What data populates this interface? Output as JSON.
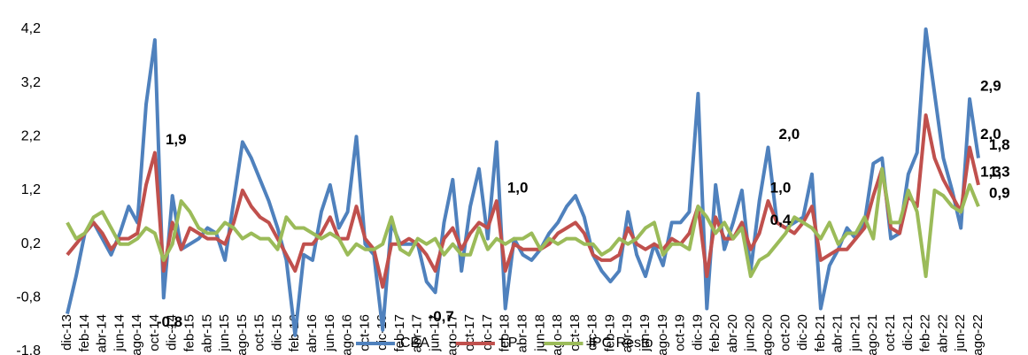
{
  "chart_data": {
    "type": "line",
    "categories": [
      "dic-13",
      null,
      "feb-14",
      null,
      "abr-14",
      null,
      "jun-14",
      null,
      "ago-14",
      null,
      "oct-14",
      null,
      "dic-14",
      null,
      "feb-15",
      null,
      "abr-15",
      null,
      "jun-15",
      null,
      "ago-15",
      null,
      "oct-15",
      null,
      "dic-15",
      null,
      "feb-16",
      null,
      "abr-16",
      null,
      "jun-16",
      null,
      "ago-16",
      null,
      "oct-16",
      null,
      "dic-16",
      null,
      "feb-17",
      null,
      "abr-17",
      null,
      "jun-17",
      null,
      "ago-17",
      null,
      "oct-17",
      null,
      "dic-17",
      null,
      "feb-18",
      null,
      "abr-18",
      null,
      "jun-18",
      null,
      "ago-18",
      null,
      "oct-18",
      null,
      "dic-18",
      null,
      "feb-19",
      null,
      "abr-19",
      null,
      "jun-19",
      null,
      "ago-19",
      null,
      "oct-19",
      null,
      "dic-19",
      null,
      "feb-20",
      null,
      "abr-20",
      null,
      "jun-20",
      null,
      "ago-20",
      null,
      "oct-20",
      null,
      "dic-20",
      null,
      "feb-21",
      null,
      "abr-21",
      null,
      "jun-21",
      null,
      "ago-21",
      null,
      "oct-21",
      null,
      "dic-21",
      null,
      "feb-22",
      null,
      "abr-22",
      null,
      "jun-22",
      null,
      "ago-22"
    ],
    "series": [
      {
        "name": "CBA",
        "color": "#4f81bd",
        "values": [
          -1.1,
          -0.4,
          0.4,
          0.6,
          0.3,
          0.0,
          0.4,
          0.9,
          0.6,
          2.8,
          4.0,
          -0.8,
          1.1,
          0.1,
          0.2,
          0.3,
          0.5,
          0.4,
          -0.1,
          1.0,
          2.1,
          1.8,
          1.4,
          1.0,
          0.5,
          -0.1,
          -1.5,
          0.0,
          -0.1,
          0.8,
          1.3,
          0.5,
          0.8,
          2.2,
          0.2,
          0.0,
          -1.4,
          0.6,
          0.2,
          0.2,
          0.2,
          -0.5,
          -0.7,
          0.6,
          1.4,
          -0.3,
          0.9,
          1.6,
          0.3,
          2.1,
          -1.0,
          0.3,
          0.0,
          -0.1,
          0.1,
          0.4,
          0.6,
          0.9,
          1.1,
          0.7,
          0.0,
          -0.3,
          -0.5,
          -0.3,
          0.8,
          0.0,
          -0.4,
          0.2,
          -0.2,
          0.6,
          0.6,
          0.8,
          3.0,
          -1.0,
          1.3,
          0.1,
          0.6,
          1.2,
          -0.3,
          1.0,
          2.0,
          0.6,
          0.5,
          0.6,
          0.7,
          1.5,
          -1.0,
          -0.2,
          0.1,
          0.5,
          0.3,
          0.6,
          1.7,
          1.8,
          0.3,
          0.4,
          1.5,
          1.9,
          4.2,
          3.0,
          1.8,
          1.2,
          0.5,
          2.9,
          1.8
        ],
        "value_labels": [
          null,
          null,
          null,
          null,
          null,
          null,
          null,
          null,
          null,
          null,
          null,
          "-0,8",
          null,
          null,
          null,
          null,
          null,
          null,
          null,
          null,
          null,
          null,
          null,
          null,
          null,
          null,
          null,
          null,
          null,
          null,
          null,
          null,
          null,
          null,
          null,
          null,
          null,
          null,
          null,
          null,
          null,
          null,
          "-0,7",
          null,
          null,
          null,
          null,
          null,
          null,
          null,
          null,
          null,
          null,
          null,
          null,
          null,
          null,
          null,
          null,
          null,
          null,
          null,
          null,
          null,
          null,
          null,
          null,
          null,
          null,
          null,
          null,
          null,
          null,
          null,
          null,
          null,
          null,
          null,
          null,
          "1,0",
          "2,0",
          null,
          null,
          null,
          null,
          null,
          null,
          null,
          null,
          null,
          null,
          null,
          null,
          null,
          null,
          null,
          null,
          null,
          null,
          null,
          null,
          null,
          null,
          "2,9",
          "1,8"
        ]
      },
      {
        "name": "LP",
        "color": "#c0504d",
        "values": [
          0.0,
          0.2,
          0.4,
          0.6,
          0.4,
          0.1,
          0.3,
          0.3,
          0.4,
          1.3,
          1.9,
          -0.3,
          0.6,
          0.1,
          0.5,
          0.4,
          0.3,
          0.3,
          0.2,
          0.6,
          1.2,
          0.9,
          0.7,
          0.6,
          0.3,
          0.0,
          -0.3,
          0.2,
          0.2,
          0.4,
          0.7,
          0.3,
          0.3,
          0.9,
          0.3,
          0.1,
          -0.6,
          0.2,
          0.2,
          0.3,
          0.2,
          0.0,
          -0.3,
          0.3,
          0.5,
          0.1,
          0.4,
          0.6,
          0.5,
          1.0,
          -0.3,
          0.2,
          0.1,
          0.1,
          0.1,
          0.2,
          0.4,
          0.5,
          0.6,
          0.4,
          0.0,
          -0.1,
          -0.1,
          0.0,
          0.5,
          0.2,
          0.1,
          0.2,
          0.1,
          0.3,
          0.2,
          0.4,
          0.9,
          -0.4,
          0.7,
          0.3,
          0.3,
          0.6,
          0.1,
          0.4,
          1.0,
          0.6,
          0.5,
          0.4,
          0.6,
          0.9,
          -0.1,
          0.0,
          0.1,
          0.1,
          0.3,
          0.5,
          1.1,
          1.6,
          0.5,
          0.4,
          1.1,
          0.9,
          2.6,
          1.8,
          1.4,
          1.1,
          0.8,
          2.0,
          1.3
        ],
        "value_labels": [
          null,
          null,
          null,
          null,
          null,
          null,
          null,
          null,
          null,
          null,
          "1,9",
          null,
          null,
          null,
          null,
          null,
          null,
          null,
          null,
          null,
          null,
          null,
          null,
          null,
          null,
          null,
          null,
          null,
          null,
          null,
          null,
          null,
          null,
          null,
          null,
          null,
          null,
          null,
          null,
          null,
          null,
          null,
          null,
          null,
          null,
          null,
          null,
          null,
          null,
          "1,0",
          null,
          null,
          null,
          null,
          null,
          null,
          null,
          null,
          null,
          null,
          null,
          null,
          null,
          null,
          null,
          null,
          null,
          null,
          null,
          null,
          null,
          null,
          null,
          null,
          null,
          null,
          null,
          null,
          null,
          "0,4",
          null,
          null,
          null,
          null,
          null,
          null,
          null,
          null,
          null,
          null,
          null,
          null,
          null,
          null,
          null,
          null,
          null,
          null,
          null,
          null,
          null,
          null,
          null,
          "2,0",
          "1,3"
        ]
      },
      {
        "name": "IPC Resto",
        "color": "#9bbb59",
        "values": [
          0.6,
          0.3,
          0.4,
          0.7,
          0.8,
          0.5,
          0.2,
          0.2,
          0.3,
          0.5,
          0.4,
          -0.1,
          0.2,
          1.0,
          0.8,
          0.5,
          0.4,
          0.4,
          0.6,
          0.5,
          0.3,
          0.4,
          0.3,
          0.3,
          0.1,
          0.7,
          0.5,
          0.5,
          0.4,
          0.3,
          0.4,
          0.3,
          0.0,
          0.2,
          0.1,
          0.1,
          0.2,
          0.7,
          0.1,
          0.0,
          0.3,
          0.2,
          0.3,
          0.0,
          0.2,
          0.0,
          0.0,
          0.5,
          0.1,
          0.3,
          0.2,
          0.3,
          0.3,
          0.4,
          0.1,
          0.3,
          0.2,
          0.3,
          0.3,
          0.2,
          0.2,
          0.0,
          0.1,
          0.3,
          0.2,
          0.3,
          0.5,
          0.6,
          0.0,
          0.2,
          0.2,
          0.1,
          0.9,
          0.7,
          0.4,
          0.6,
          0.3,
          0.5,
          -0.4,
          -0.1,
          0.0,
          0.2,
          0.4,
          0.7,
          0.6,
          0.5,
          0.3,
          0.6,
          0.2,
          0.4,
          0.4,
          0.7,
          0.3,
          1.6,
          0.6,
          0.6,
          1.2,
          0.8,
          -0.4,
          1.2,
          1.1,
          0.9,
          0.8,
          1.3,
          0.9
        ],
        "value_labels": [
          null,
          null,
          null,
          null,
          null,
          null,
          null,
          null,
          null,
          null,
          null,
          null,
          null,
          null,
          null,
          null,
          null,
          null,
          null,
          null,
          null,
          null,
          null,
          null,
          null,
          null,
          null,
          null,
          null,
          null,
          null,
          null,
          null,
          null,
          null,
          null,
          null,
          null,
          null,
          null,
          null,
          null,
          null,
          null,
          null,
          null,
          null,
          null,
          null,
          null,
          null,
          null,
          null,
          null,
          null,
          null,
          null,
          null,
          null,
          null,
          null,
          null,
          null,
          null,
          null,
          null,
          null,
          null,
          null,
          null,
          null,
          null,
          null,
          null,
          null,
          null,
          null,
          null,
          null,
          null,
          null,
          null,
          null,
          null,
          null,
          null,
          null,
          null,
          null,
          null,
          null,
          null,
          null,
          null,
          null,
          null,
          null,
          null,
          null,
          null,
          null,
          null,
          null,
          "1,3",
          "0,9"
        ]
      }
    ],
    "ylim": [
      -1.8,
      4.2
    ],
    "yticks": [
      {
        "value": -1.8,
        "label": "-1,8"
      },
      {
        "value": -0.8,
        "label": "-0,8"
      },
      {
        "value": 0.2,
        "label": "0,2"
      },
      {
        "value": 1.2,
        "label": "1,2"
      },
      {
        "value": 2.2,
        "label": "2,2"
      },
      {
        "value": 3.2,
        "label": "3,2"
      },
      {
        "value": 4.2,
        "label": "4,2"
      }
    ],
    "grid": false,
    "legend": "bottom"
  }
}
